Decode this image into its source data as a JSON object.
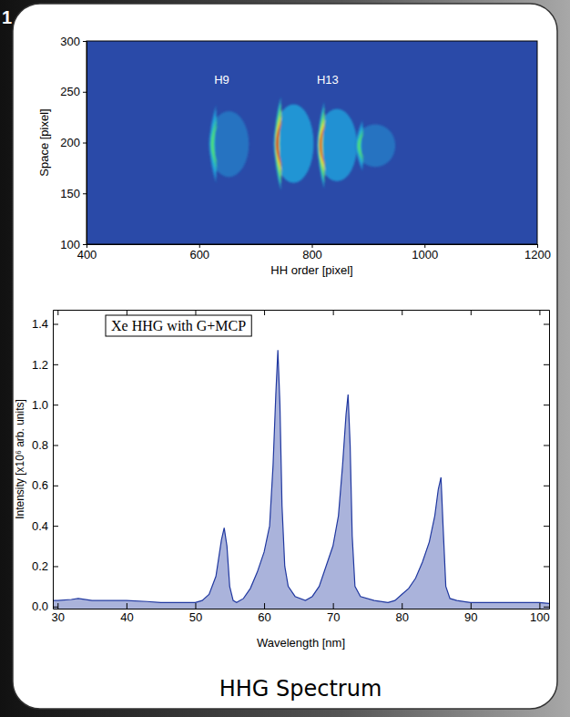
{
  "page_label": "1",
  "caption": "HHG Spectrum",
  "chart_data": [
    {
      "type": "heatmap",
      "xlabel": "HH order [pixel]",
      "ylabel": "Space [pixel]",
      "xlim": [
        400,
        1200
      ],
      "ylim": [
        100,
        300
      ],
      "xticks": [
        400,
        600,
        800,
        1000,
        1200
      ],
      "yticks": [
        100,
        150,
        200,
        250,
        300
      ],
      "grid": false,
      "spots": {
        "x": [
          630,
          745,
          822,
          890
        ],
        "y_min": [
          160,
          153,
          155,
          172
        ],
        "y_max": [
          237,
          245,
          240,
          222
        ],
        "intensity": [
          0.55,
          1.0,
          0.95,
          0.55
        ]
      },
      "annotations": [
        {
          "text": "H9",
          "x": 640,
          "y": 258
        },
        {
          "text": "H13",
          "x": 828,
          "y": 258
        }
      ]
    },
    {
      "type": "line",
      "xlabel": "Wavelength [nm]",
      "ylabel": "Intensity [x10⁶ arb. units]",
      "xlim": [
        29.3,
        101.4
      ],
      "ylim": [
        -0.01,
        1.47
      ],
      "xticks": [
        30,
        40,
        50,
        60,
        70,
        80,
        90,
        100
      ],
      "yticks": [
        {
          "value": 0,
          "label": "0.0"
        },
        0.2,
        0.4,
        0.6,
        0.8,
        {
          "value": 1,
          "label": "1.0"
        },
        1.2,
        1.4
      ],
      "grid": false,
      "legend": "upper left",
      "x": [
        29.3,
        30,
        32,
        33,
        35,
        38,
        40,
        43,
        45,
        48,
        50,
        51,
        52,
        53,
        53.8,
        54.2,
        54.6,
        55,
        55.5,
        56,
        57,
        58,
        59,
        60,
        60.8,
        61.3,
        61.7,
        62,
        62.3,
        62.6,
        63,
        63.5,
        64.5,
        66,
        67,
        68,
        69,
        70,
        70.8,
        71.4,
        71.9,
        72.2,
        72.5,
        72.8,
        73.2,
        74,
        76,
        78,
        79,
        80,
        81,
        82,
        83,
        84,
        84.8,
        85.3,
        85.7,
        86,
        86.4,
        87,
        88,
        90,
        95,
        100,
        101.4
      ],
      "series": [
        {
          "name": "Xe HHG with G+MCP",
          "color": "#2038a0",
          "values": [
            0.03,
            0.03,
            0.035,
            0.04,
            0.03,
            0.03,
            0.03,
            0.025,
            0.02,
            0.02,
            0.02,
            0.03,
            0.06,
            0.15,
            0.33,
            0.39,
            0.3,
            0.1,
            0.03,
            0.02,
            0.04,
            0.09,
            0.17,
            0.27,
            0.4,
            0.7,
            1.05,
            1.27,
            1.0,
            0.5,
            0.2,
            0.1,
            0.05,
            0.03,
            0.05,
            0.1,
            0.2,
            0.3,
            0.45,
            0.7,
            0.95,
            1.05,
            0.8,
            0.35,
            0.1,
            0.05,
            0.03,
            0.02,
            0.03,
            0.06,
            0.09,
            0.14,
            0.22,
            0.32,
            0.45,
            0.58,
            0.64,
            0.4,
            0.1,
            0.04,
            0.03,
            0.02,
            0.02,
            0.02,
            0.015
          ]
        }
      ]
    }
  ]
}
